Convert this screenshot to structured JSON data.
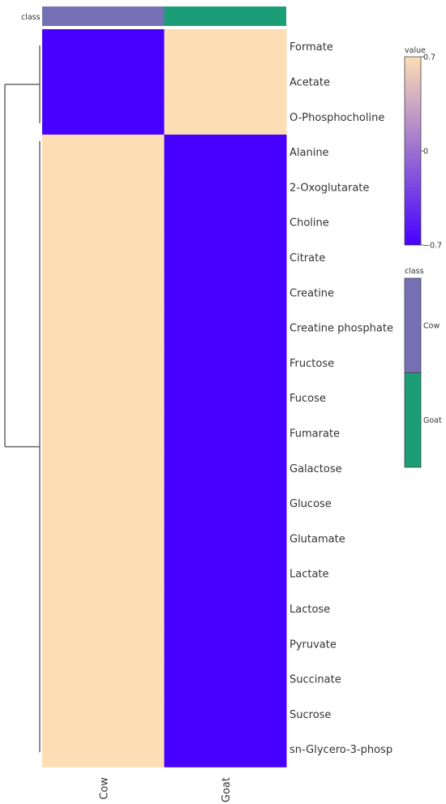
{
  "chart_data": {
    "type": "heatmap",
    "columns": [
      "Cow",
      "Goat"
    ],
    "rows": [
      "Formate",
      "Acetate",
      "O-Phosphocholine",
      "Alanine",
      "2-Oxoglutarate",
      "Choline",
      "Citrate",
      "Creatine",
      "Creatine phosphate",
      "Fructose",
      "Fucose",
      "Fumarate",
      "Galactose",
      "Glucose",
      "Glutamate",
      "Lactate",
      "Lactose",
      "Pyruvate",
      "Succinate",
      "Sucrose",
      "sn-Glycero-3-phosp"
    ],
    "values": [
      [
        -0.7,
        0.7
      ],
      [
        -0.7,
        0.7
      ],
      [
        -0.7,
        0.7
      ],
      [
        0.7,
        -0.7
      ],
      [
        0.7,
        -0.7
      ],
      [
        0.7,
        -0.7
      ],
      [
        0.7,
        -0.7
      ],
      [
        0.7,
        -0.7
      ],
      [
        0.7,
        -0.7
      ],
      [
        0.7,
        -0.7
      ],
      [
        0.7,
        -0.7
      ],
      [
        0.7,
        -0.7
      ],
      [
        0.7,
        -0.7
      ],
      [
        0.7,
        -0.7
      ],
      [
        0.7,
        -0.7
      ],
      [
        0.7,
        -0.7
      ],
      [
        0.7,
        -0.7
      ],
      [
        0.7,
        -0.7
      ],
      [
        0.7,
        -0.7
      ],
      [
        0.7,
        -0.7
      ],
      [
        0.7,
        -0.7
      ]
    ],
    "value_range": [
      -0.7,
      0.7
    ],
    "colorscale": {
      "low": "#4700ff",
      "mid": "#9b70d1",
      "high": "#fddeb4"
    },
    "class_annotation": {
      "label": "class",
      "classes": [
        {
          "name": "Cow",
          "color": "#7570b3"
        },
        {
          "name": "Goat",
          "color": "#1b9e77"
        }
      ]
    },
    "legend_value": {
      "title": "value",
      "ticks": [
        "0.7",
        "0",
        "−0.7"
      ]
    },
    "legend_class": {
      "title": "class",
      "entries": [
        "Cow",
        "Goat"
      ]
    },
    "dendrogram": {
      "side": "left",
      "clusters": [
        3,
        18
      ]
    }
  }
}
